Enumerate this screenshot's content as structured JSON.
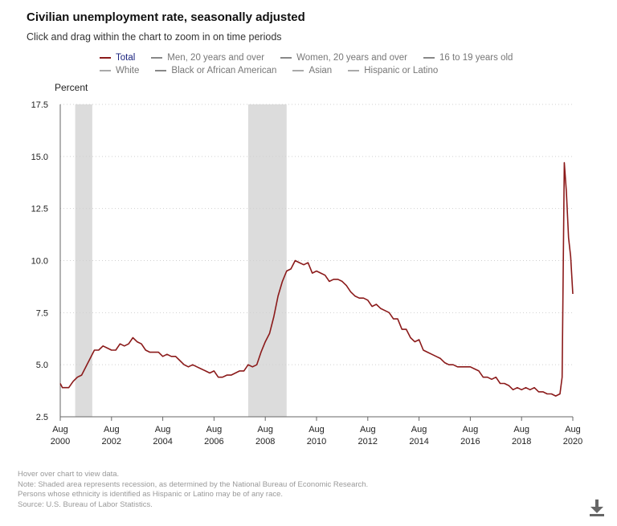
{
  "header": {
    "title": "Civilian unemployment rate, seasonally adjusted",
    "subtitle": "Click and drag within the chart to zoom in on time periods"
  },
  "legend": {
    "rows": [
      [
        {
          "label": "Total",
          "color": "#8b1a1a",
          "active": true
        },
        {
          "label": "Men, 20 years and over",
          "color": "#888888",
          "active": false
        },
        {
          "label": "Women, 20 years and over",
          "color": "#888888",
          "active": false
        },
        {
          "label": "16 to 19 years old",
          "color": "#888888",
          "active": false
        }
      ],
      [
        {
          "label": "White",
          "color": "#aaaaaa",
          "active": false
        },
        {
          "label": "Black or African American",
          "color": "#888888",
          "active": false
        },
        {
          "label": "Asian",
          "color": "#aaaaaa",
          "active": false
        },
        {
          "label": "Hispanic or Latino",
          "color": "#aaaaaa",
          "active": false
        }
      ]
    ]
  },
  "chart_data": {
    "type": "line",
    "title": "Civilian unemployment rate, seasonally adjusted",
    "ylabel": "Percent",
    "xlabel": "",
    "ylim": [
      2.5,
      17.5
    ],
    "xlim": [
      "2000-08",
      "2020-08"
    ],
    "y_ticks": [
      "2.5",
      "5.0",
      "7.5",
      "10.0",
      "12.5",
      "15.0",
      "17.5"
    ],
    "x_ticks": [
      {
        "month": "Aug",
        "year": "2000",
        "date": "2000-08"
      },
      {
        "month": "Aug",
        "year": "2002",
        "date": "2002-08"
      },
      {
        "month": "Aug",
        "year": "2004",
        "date": "2004-08"
      },
      {
        "month": "Aug",
        "year": "2006",
        "date": "2006-08"
      },
      {
        "month": "Aug",
        "year": "2008",
        "date": "2008-08"
      },
      {
        "month": "Aug",
        "year": "2010",
        "date": "2010-08"
      },
      {
        "month": "Aug",
        "year": "2012",
        "date": "2012-08"
      },
      {
        "month": "Aug",
        "year": "2014",
        "date": "2014-08"
      },
      {
        "month": "Aug",
        "year": "2016",
        "date": "2016-08"
      },
      {
        "month": "Aug",
        "year": "2018",
        "date": "2018-08"
      },
      {
        "month": "Aug",
        "year": "2020",
        "date": "2020-08"
      }
    ],
    "grid": "horizontal dotted",
    "recessions": [
      {
        "start": "2001-03",
        "end": "2001-11"
      },
      {
        "start": "2007-12",
        "end": "2009-06"
      }
    ],
    "series": [
      {
        "name": "Total",
        "color": "#8b1a1a",
        "x": [
          "2000-08",
          "2000-09",
          "2000-10",
          "2000-12",
          "2001-02",
          "2001-04",
          "2001-06",
          "2001-08",
          "2001-10",
          "2001-12",
          "2002-02",
          "2002-04",
          "2002-06",
          "2002-08",
          "2002-10",
          "2002-12",
          "2003-02",
          "2003-04",
          "2003-06",
          "2003-08",
          "2003-10",
          "2003-12",
          "2004-02",
          "2004-04",
          "2004-06",
          "2004-08",
          "2004-10",
          "2004-12",
          "2005-02",
          "2005-04",
          "2005-06",
          "2005-08",
          "2005-10",
          "2005-12",
          "2006-02",
          "2006-04",
          "2006-06",
          "2006-08",
          "2006-10",
          "2006-12",
          "2007-02",
          "2007-04",
          "2007-06",
          "2007-08",
          "2007-10",
          "2007-12",
          "2008-02",
          "2008-04",
          "2008-06",
          "2008-08",
          "2008-10",
          "2008-12",
          "2009-02",
          "2009-04",
          "2009-06",
          "2009-08",
          "2009-10",
          "2009-12",
          "2010-02",
          "2010-04",
          "2010-06",
          "2010-08",
          "2010-10",
          "2010-12",
          "2011-02",
          "2011-04",
          "2011-06",
          "2011-08",
          "2011-10",
          "2011-12",
          "2012-02",
          "2012-04",
          "2012-06",
          "2012-08",
          "2012-10",
          "2012-12",
          "2013-02",
          "2013-04",
          "2013-06",
          "2013-08",
          "2013-10",
          "2013-12",
          "2014-02",
          "2014-04",
          "2014-06",
          "2014-08",
          "2014-10",
          "2014-12",
          "2015-02",
          "2015-04",
          "2015-06",
          "2015-08",
          "2015-10",
          "2015-12",
          "2016-02",
          "2016-04",
          "2016-06",
          "2016-08",
          "2016-10",
          "2016-12",
          "2017-02",
          "2017-04",
          "2017-06",
          "2017-08",
          "2017-10",
          "2017-12",
          "2018-02",
          "2018-04",
          "2018-06",
          "2018-08",
          "2018-10",
          "2018-12",
          "2019-02",
          "2019-04",
          "2019-06",
          "2019-08",
          "2019-10",
          "2019-12",
          "2020-02",
          "2020-03",
          "2020-04",
          "2020-05",
          "2020-06",
          "2020-07",
          "2020-08"
        ],
        "y": [
          4.1,
          3.9,
          3.9,
          3.9,
          4.2,
          4.4,
          4.5,
          4.9,
          5.3,
          5.7,
          5.7,
          5.9,
          5.8,
          5.7,
          5.7,
          6.0,
          5.9,
          6.0,
          6.3,
          6.1,
          6.0,
          5.7,
          5.6,
          5.6,
          5.6,
          5.4,
          5.5,
          5.4,
          5.4,
          5.2,
          5.0,
          4.9,
          5.0,
          4.9,
          4.8,
          4.7,
          4.6,
          4.7,
          4.4,
          4.4,
          4.5,
          4.5,
          4.6,
          4.7,
          4.7,
          5.0,
          4.9,
          5.0,
          5.6,
          6.1,
          6.5,
          7.3,
          8.3,
          9.0,
          9.5,
          9.6,
          10.0,
          9.9,
          9.8,
          9.9,
          9.4,
          9.5,
          9.4,
          9.3,
          9.0,
          9.1,
          9.1,
          9.0,
          8.8,
          8.5,
          8.3,
          8.2,
          8.2,
          8.1,
          7.8,
          7.9,
          7.7,
          7.6,
          7.5,
          7.2,
          7.2,
          6.7,
          6.7,
          6.3,
          6.1,
          6.2,
          5.7,
          5.6,
          5.5,
          5.4,
          5.3,
          5.1,
          5.0,
          5.0,
          4.9,
          4.9,
          4.9,
          4.9,
          4.8,
          4.7,
          4.4,
          4.4,
          4.3,
          4.4,
          4.1,
          4.1,
          4.0,
          3.8,
          3.9,
          3.8,
          3.9,
          3.8,
          3.9,
          3.7,
          3.7,
          3.6,
          3.6,
          3.5,
          3.6,
          4.4,
          14.7,
          13.3,
          11.1,
          10.2,
          8.4
        ]
      }
    ]
  },
  "notes": [
    "Hover over chart to view data.",
    "Note: Shaded area represents recession, as determined by the National Bureau of Economic Research.",
    "Persons whose ethnicity is identified as Hispanic or Latino may be of any race.",
    "Source: U.S. Bureau of Labor Statistics."
  ],
  "icons": {
    "download": "download-icon"
  }
}
